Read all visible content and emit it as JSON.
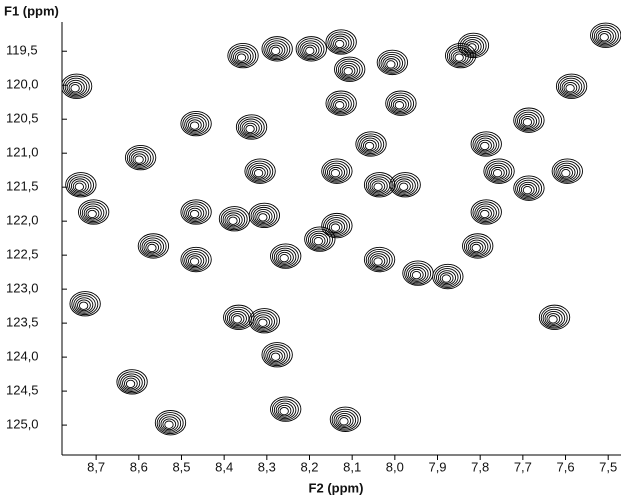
{
  "chart_data": {
    "type": "contour",
    "x_label": "F2 (ppm)",
    "y_label": "F1 (ppm)",
    "xlim": [
      8.78,
      7.47
    ],
    "ylim": [
      125.44,
      119.07
    ],
    "xticks": [
      {
        "value": 8.7,
        "label": "8,7"
      },
      {
        "value": 8.6,
        "label": "8,6"
      },
      {
        "value": 8.5,
        "label": "8,5"
      },
      {
        "value": 8.4,
        "label": "8,4"
      },
      {
        "value": 8.3,
        "label": "8,3"
      },
      {
        "value": 8.2,
        "label": "8,2"
      },
      {
        "value": 8.1,
        "label": "8,1"
      },
      {
        "value": 8.0,
        "label": "8,0"
      },
      {
        "value": 7.9,
        "label": "7,9"
      },
      {
        "value": 7.8,
        "label": "7,8"
      },
      {
        "value": 7.7,
        "label": "7,7"
      },
      {
        "value": 7.6,
        "label": "7,6"
      },
      {
        "value": 7.5,
        "label": "7,5"
      }
    ],
    "yticks": [
      {
        "value": 119.5,
        "label": "119,5"
      },
      {
        "value": 120.0,
        "label": "120,0"
      },
      {
        "value": 120.5,
        "label": "120,5"
      },
      {
        "value": 121.0,
        "label": "121,0"
      },
      {
        "value": 121.5,
        "label": "121,5"
      },
      {
        "value": 122.0,
        "label": "122,0"
      },
      {
        "value": 122.5,
        "label": "122,5"
      },
      {
        "value": 123.0,
        "label": "123,0"
      },
      {
        "value": 123.5,
        "label": "123,5"
      },
      {
        "value": 124.0,
        "label": "124,0"
      },
      {
        "value": 124.5,
        "label": "124,5"
      },
      {
        "value": 125.0,
        "label": "125,0"
      }
    ],
    "color": "#000000",
    "series": [
      {
        "x": [
          8.75,
          8.6,
          8.47,
          8.34,
          8.32,
          8.74,
          8.71,
          8.57,
          8.47,
          8.47,
          8.38,
          8.31,
          8.26,
          8.18,
          8.14,
          8.73,
          8.37,
          8.31,
          8.28,
          8.26,
          8.62,
          8.53,
          8.12,
          8.36,
          8.28,
          8.2,
          8.13,
          8.13,
          8.11,
          8.01,
          7.99,
          7.85,
          7.82,
          7.59,
          7.69,
          7.51,
          8.06,
          8.14,
          8.04,
          7.98,
          7.79,
          7.76,
          7.69,
          7.6,
          7.79,
          7.81,
          8.04,
          7.95,
          7.88,
          7.63
        ],
        "y": [
          120.05,
          121.1,
          120.6,
          120.65,
          121.3,
          121.5,
          121.9,
          122.4,
          122.6,
          121.9,
          122.0,
          121.95,
          122.55,
          122.3,
          122.1,
          123.25,
          123.45,
          123.5,
          124.0,
          124.8,
          124.4,
          125.0,
          124.95,
          119.6,
          119.5,
          119.5,
          119.4,
          120.3,
          119.8,
          119.7,
          120.3,
          119.6,
          119.45,
          120.05,
          120.55,
          119.3,
          120.9,
          121.3,
          121.5,
          121.5,
          120.9,
          121.3,
          121.55,
          121.3,
          121.9,
          122.4,
          122.6,
          122.8,
          122.85,
          123.45
        ]
      }
    ]
  }
}
